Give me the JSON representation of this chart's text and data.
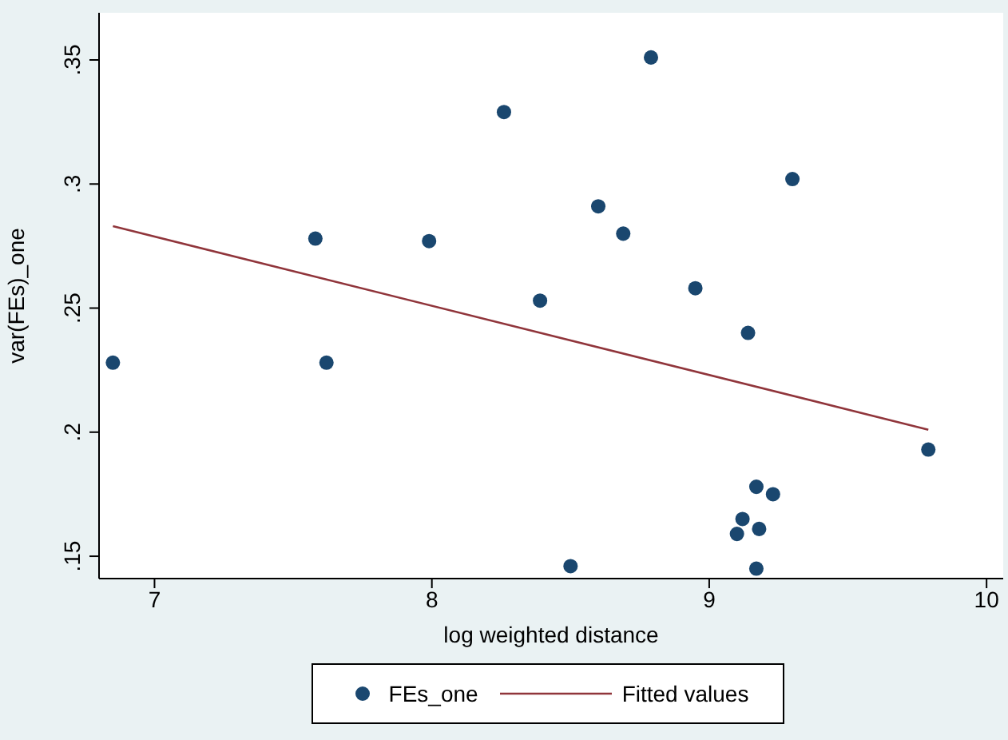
{
  "chart_data": {
    "type": "scatter",
    "xlabel": "log weighted distance",
    "ylabel": "var(FEs)_one",
    "xlim": [
      6.8,
      10.06
    ],
    "xticks": [
      7,
      8,
      9,
      10
    ],
    "ylim": [
      0.141,
      0.369
    ],
    "yticks": [
      {
        "value": 0.15,
        "label": ".15"
      },
      {
        "value": 0.2,
        "label": ".2"
      },
      {
        "value": 0.25,
        "label": ".25"
      },
      {
        "value": 0.3,
        "label": ".3"
      },
      {
        "value": 0.35,
        "label": ".35"
      }
    ],
    "grid": false,
    "legend": "bottom",
    "series": [
      {
        "name": "FEs_one",
        "marker": "circle",
        "color": "#1a476f",
        "x": [
          6.85,
          7.58,
          7.62,
          7.99,
          8.26,
          8.39,
          8.5,
          8.6,
          8.69,
          8.79,
          8.95,
          9.1,
          9.12,
          9.14,
          9.17,
          9.18,
          9.17,
          9.23,
          9.3,
          9.79
        ],
        "values": [
          0.228,
          0.278,
          0.228,
          0.277,
          0.329,
          0.253,
          0.146,
          0.291,
          0.28,
          0.351,
          0.258,
          0.159,
          0.165,
          0.24,
          0.178,
          0.161,
          0.145,
          0.175,
          0.302,
          0.193
        ]
      },
      {
        "name": "Fitted values",
        "type": "line",
        "marker": "none",
        "color": "#90353b",
        "x": [
          6.85,
          9.79
        ],
        "values": [
          0.283,
          0.201
        ]
      }
    ]
  }
}
